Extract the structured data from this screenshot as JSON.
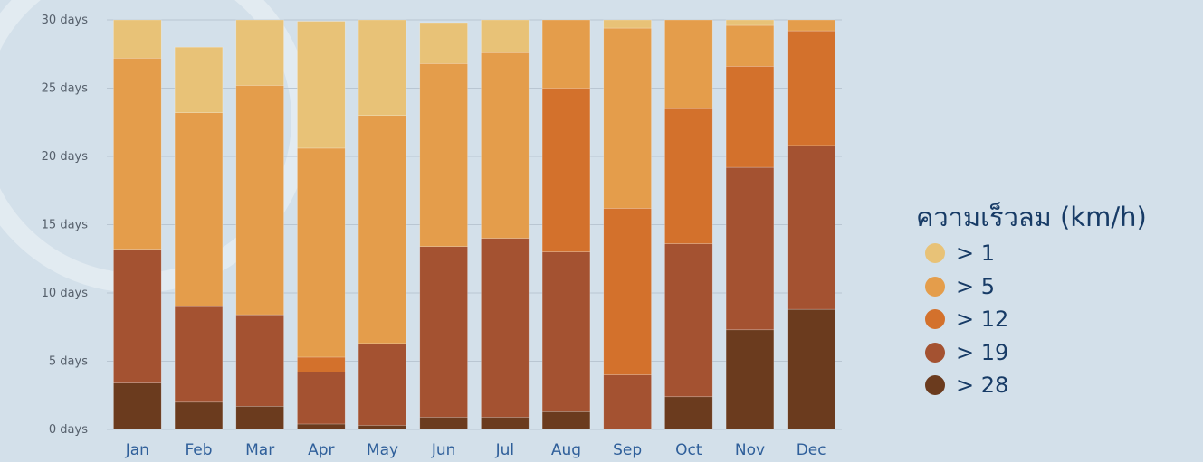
{
  "chart_data": {
    "type": "bar",
    "stacked": true,
    "categories": [
      "Jan",
      "Feb",
      "Mar",
      "Apr",
      "May",
      "Jun",
      "Jul",
      "Aug",
      "Sep",
      "Oct",
      "Nov",
      "Dec"
    ],
    "y_ticks": [
      "0 days",
      "5 days",
      "10 days",
      "15 days",
      "20 days",
      "25 days",
      "30 days"
    ],
    "ylim": [
      0,
      30
    ],
    "grid": true,
    "legend_title": "ความเร็วลม (km/h)",
    "legend_position": "right",
    "series": [
      {
        "name": "> 28",
        "color": "#6b3b1e",
        "values": [
          3.4,
          2.0,
          1.7,
          0.4,
          0.3,
          0.9,
          0.9,
          1.3,
          0,
          2.4,
          7.3,
          8.8
        ]
      },
      {
        "name": "> 19",
        "color": "#a45231",
        "values": [
          9.8,
          7.0,
          6.7,
          3.8,
          6.0,
          12.5,
          13.1,
          11.7,
          4.0,
          11.2,
          11.9,
          12.0
        ]
      },
      {
        "name": "> 12",
        "color": "#d3712c",
        "values": [
          0,
          0,
          0,
          1.1,
          0,
          0,
          0,
          12.0,
          12.2,
          9.9,
          7.4,
          8.4
        ]
      },
      {
        "name": "> 5",
        "color": "#e49d4b",
        "values": [
          14.0,
          14.2,
          16.8,
          15.3,
          16.7,
          13.4,
          13.6,
          5.0,
          13.2,
          6.5,
          3.0,
          0.8
        ]
      },
      {
        "name": "> 1",
        "color": "#e8c277",
        "values": [
          2.8,
          4.8,
          4.8,
          9.3,
          7.0,
          3.0,
          2.4,
          0,
          0.6,
          0,
          0.4,
          0
        ]
      }
    ]
  }
}
